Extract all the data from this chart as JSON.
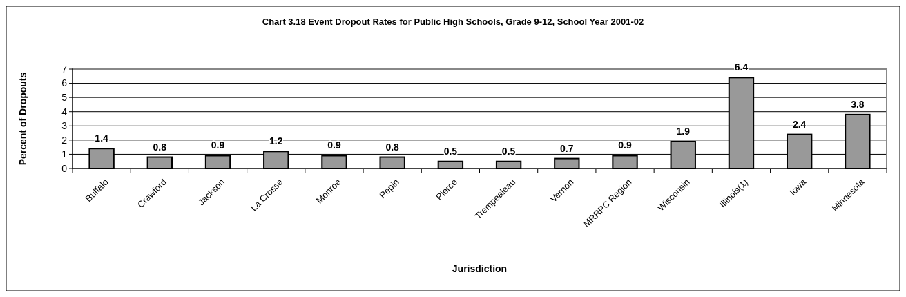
{
  "chart_data": {
    "type": "bar",
    "title": "Chart 3.18  Event Dropout Rates for Public High Schools, Grade 9-12, School Year 2001-02",
    "xlabel": "Jurisdiction",
    "ylabel": "Percent of Dropouts",
    "categories": [
      "Buffalo",
      "Crawford",
      "Jackson",
      "La Crosse",
      "Monroe",
      "Pepin",
      "Pierce",
      "Trempealeau",
      "Vernon",
      "MRRPC Region",
      "Wisconsin",
      "Illinois(1)",
      "Iowa",
      "Minnesota"
    ],
    "values": [
      1.4,
      0.8,
      0.9,
      1.2,
      0.9,
      0.8,
      0.5,
      0.5,
      0.7,
      0.9,
      1.9,
      6.4,
      2.4,
      3.8
    ],
    "color": "#999999",
    "ylim": [
      0,
      7
    ],
    "yticks": [
      0,
      1,
      2,
      3,
      4,
      5,
      6,
      7
    ],
    "grid": "y",
    "data_labels": true
  }
}
